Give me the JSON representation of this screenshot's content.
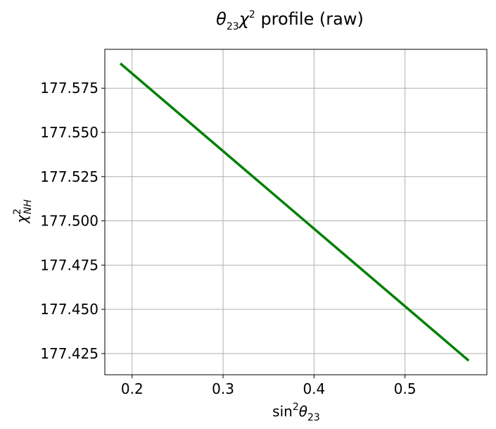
{
  "chart_data": {
    "type": "line",
    "title": {
      "theta": "θ",
      "sub": "23",
      "chi": "χ",
      "sup": "2",
      "rest": " profile (raw)"
    },
    "xlabel": {
      "main": "sin",
      "sup": "2",
      "theta": "θ",
      "sub": "23"
    },
    "ylabel": {
      "chi": "χ",
      "sup": "2",
      "sub": "NH"
    },
    "xlim": [
      0.17,
      0.59
    ],
    "ylim": [
      177.413,
      177.597
    ],
    "xticks": [
      0.2,
      0.3,
      0.4,
      0.5
    ],
    "xtick_labels": [
      "0.2",
      "0.3",
      "0.4",
      "0.5"
    ],
    "yticks": [
      177.425,
      177.45,
      177.475,
      177.5,
      177.525,
      177.55,
      177.575
    ],
    "ytick_labels": [
      "177.425",
      "177.450",
      "177.475",
      "177.500",
      "177.525",
      "177.550",
      "177.575"
    ],
    "grid": true,
    "series": [
      {
        "color": "#008000",
        "x": [
          0.187,
          0.57
        ],
        "y": [
          177.589,
          177.421
        ]
      }
    ]
  }
}
